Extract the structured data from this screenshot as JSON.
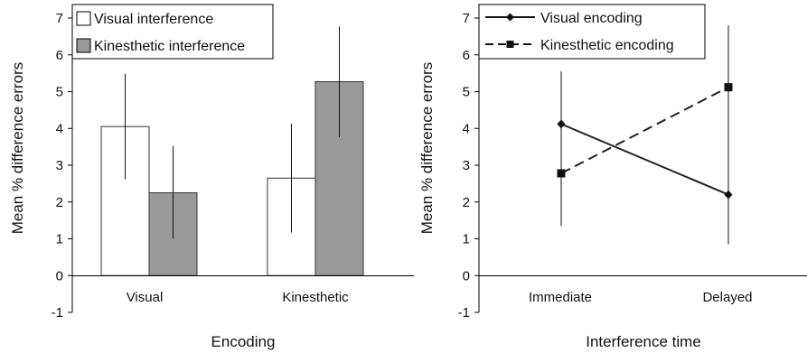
{
  "chart_data": [
    {
      "type": "bar",
      "xlabel": "Encoding",
      "ylabel": "Mean % difference errors",
      "ylim": [
        -1,
        7
      ],
      "yticks": [
        -1,
        0,
        1,
        2,
        3,
        4,
        5,
        6,
        7
      ],
      "grid": false,
      "legend_position": "top-left",
      "categories": [
        "Visual",
        "Kinesthetic"
      ],
      "series": [
        {
          "name": "Visual interference",
          "color": "#ffffff",
          "values": [
            4.05,
            2.65
          ],
          "error_low": [
            2.62,
            1.17
          ],
          "error_high": [
            5.48,
            4.13
          ]
        },
        {
          "name": "Kinesthetic interference",
          "color": "#999999",
          "values": [
            2.25,
            5.27
          ],
          "error_low": [
            1.0,
            3.77
          ],
          "error_high": [
            3.52,
            6.77
          ]
        }
      ]
    },
    {
      "type": "line",
      "xlabel": "Interference time",
      "ylabel": "Mean % difference errors",
      "ylim": [
        -1,
        7
      ],
      "yticks": [
        -1,
        0,
        1,
        2,
        3,
        4,
        5,
        6,
        7
      ],
      "grid": false,
      "legend_position": "top-left",
      "categories": [
        "Immediate",
        "Delayed"
      ],
      "series": [
        {
          "name": "Visual encoding",
          "line_style": "solid",
          "marker": "diamond",
          "values": [
            4.12,
            2.2
          ],
          "error_low": [
            1.35,
            0.85
          ],
          "error_high": [
            5.55,
            6.8
          ]
        },
        {
          "name": "Kinesthetic encoding",
          "line_style": "dashed",
          "marker": "square",
          "values": [
            2.78,
            5.12
          ],
          "error_low": [
            1.35,
            0.85
          ],
          "error_high": [
            5.55,
            6.8
          ]
        }
      ]
    }
  ]
}
